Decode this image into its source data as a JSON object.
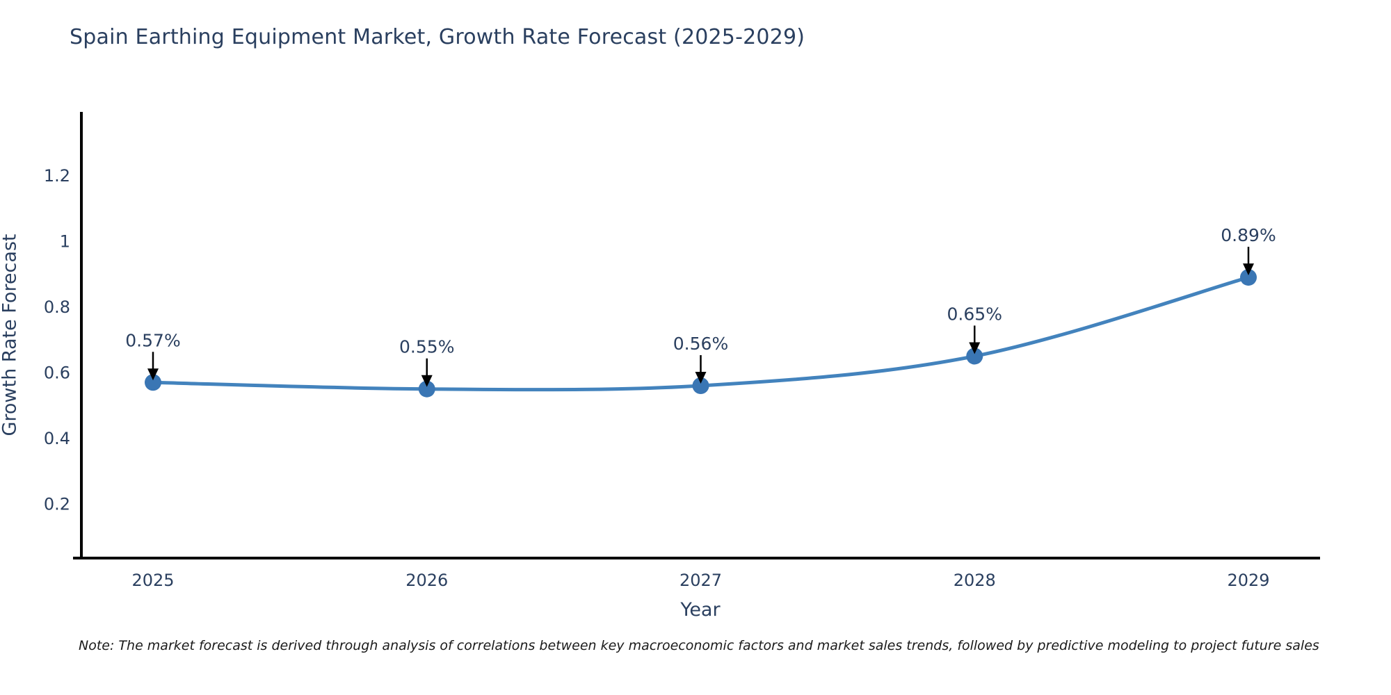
{
  "title": "Spain Earthing Equipment Market, Growth Rate Forecast (2025-2029)",
  "note": "Note: The market forecast is derived through analysis of correlations between key macroeconomic factors and market sales trends, followed by predictive modeling to project future sales",
  "chart_data": {
    "type": "line",
    "title": "Spain Earthing Equipment Market, Growth Rate Forecast (2025-2029)",
    "xlabel": "Year",
    "ylabel": "Growth Rate Forecast",
    "categories": [
      "2025",
      "2026",
      "2027",
      "2028",
      "2029"
    ],
    "series": [
      {
        "name": "Growth Rate Forecast",
        "values": [
          0.57,
          0.55,
          0.56,
          0.65,
          0.89
        ],
        "labels": [
          "0.57%",
          "0.55%",
          "0.56%",
          "0.65%",
          "0.89%"
        ]
      }
    ],
    "yticks": [
      0.2,
      0.4,
      0.6,
      0.8,
      1,
      1.2
    ],
    "ylim": [
      0.035,
      1.394
    ],
    "grid": false,
    "legend_position": "none",
    "line_shape": "spline",
    "annotations_style": "value-label-with-down-arrow",
    "colors": {
      "line": "#4383bd",
      "marker": "#3a76b4",
      "axis": "#000000",
      "tick_text": "#2a3f5f",
      "annotation_text": "#2a3f5f",
      "arrow": "#000000",
      "title_text": "#2a3f5f",
      "background": "#ffffff"
    }
  }
}
